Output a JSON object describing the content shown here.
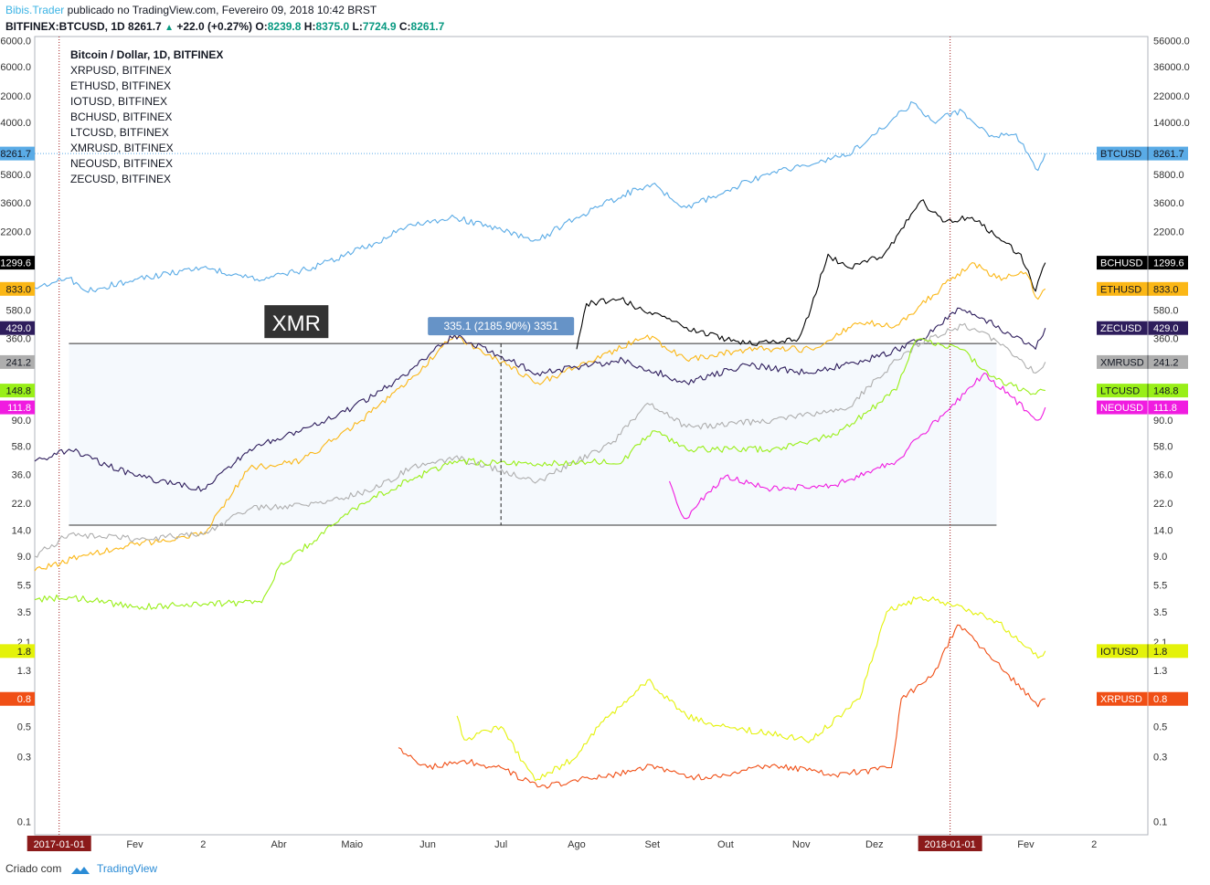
{
  "header": {
    "author": "Bibis.Trader",
    "published": " publicado no TradingView.com, Fevereiro 09, 2018 10:42 BRST",
    "symbol": "BITFINEX:BTCUSD, 1D",
    "last": "8261.7",
    "change": "+22.0 (+0.27%)",
    "o_label": "O:",
    "o": "8239.8",
    "h_label": "H:",
    "h": "8375.0",
    "l_label": "L:",
    "l": "7724.9",
    "c_label": "C:",
    "c": "8261.7"
  },
  "footer": {
    "created": "Criado com",
    "brand": "TradingView"
  },
  "xmr_label": "XMR",
  "measure_label": "335.1 (2185.90%) 3351",
  "colors": {
    "BTCUSD": "#5aabe6",
    "BCHUSD": "#000000",
    "ETHUSD": "#fbb716",
    "ZECUSD": "#2e1d5c",
    "XMRUSD": "#aeaeae",
    "LTCUSD": "#99ef18",
    "NEOUSD": "#f01ce0",
    "IOTUSD": "#e4f20a",
    "XRPUSD": "#f04f16"
  },
  "chart_data": {
    "type": "line",
    "title": "Bitcoin / Dollar, 1D, BITFINEX",
    "legend": [
      "Bitcoin / Dollar, 1D, BITFINEX",
      "XRPUSD, BITFINEX",
      "ETHUSD, BITFINEX",
      "IOTUSD, BITFINEX",
      "BCHUSD, BITFINEX",
      "LTCUSD, BITFINEX",
      "XMRUSD, BITFINEX",
      "NEOUSD, BITFINEX",
      "ZECUSD, BITFINEX"
    ],
    "legend_position": "top-left",
    "y_scale": "log",
    "y_ticks": [
      "56000.0",
      "36000.0",
      "22000.0",
      "14000.0",
      "5800.0",
      "3600.0",
      "2200.0",
      "580.0",
      "360.0",
      "90.0",
      "58.0",
      "36.0",
      "22.0",
      "14.0",
      "9.0",
      "5.5",
      "3.5",
      "2.1",
      "1.3",
      "0.5",
      "0.3",
      "0.1"
    ],
    "x_ticks": [
      "2017-01-01",
      "Fev",
      "2",
      "Abr",
      "Maio",
      "Jun",
      "Jul",
      "Ago",
      "Set",
      "Out",
      "Nov",
      "Dez",
      "2018-01-01",
      "Fev",
      "2"
    ],
    "x_tick_dates": [
      "2017-01-01",
      "2017-02-01",
      "2017-03-01",
      "2017-04-01",
      "2017-05-01",
      "2017-06-01",
      "2017-07-01",
      "2017-08-01",
      "2017-09-01",
      "2017-10-01",
      "2017-11-01",
      "2017-12-01",
      "2018-01-01",
      "2018-02-01",
      "2018-03-01"
    ],
    "x_range": [
      "2016-12-22",
      "2018-03-23"
    ],
    "highlighted_x_ticks": [
      "2017-01-01",
      "2018-01-01"
    ],
    "last_value_labels": [
      {
        "name": "BTCUSD",
        "value": "8261.7"
      },
      {
        "name": "BCHUSD",
        "value": "1299.6"
      },
      {
        "name": "ETHUSD",
        "value": "833.0"
      },
      {
        "name": "ZECUSD",
        "value": "429.0"
      },
      {
        "name": "XMRUSD",
        "value": "241.2"
      },
      {
        "name": "LTCUSD",
        "value": "148.8"
      },
      {
        "name": "NEOUSD",
        "value": "111.8"
      },
      {
        "name": "IOTUSD",
        "value": "1.8"
      },
      {
        "name": "XRPUSD",
        "value": "0.8"
      }
    ],
    "series": [
      {
        "name": "BTCUSD",
        "x": [
          "2016-12-22",
          "2017-01-05",
          "2017-01-12",
          "2017-02-01",
          "2017-03-01",
          "2017-03-25",
          "2017-04-15",
          "2017-05-10",
          "2017-05-25",
          "2017-06-12",
          "2017-07-16",
          "2017-08-01",
          "2017-08-20",
          "2017-09-01",
          "2017-09-15",
          "2017-10-01",
          "2017-10-20",
          "2017-11-10",
          "2017-11-20",
          "2017-12-08",
          "2017-12-17",
          "2017-12-25",
          "2018-01-06",
          "2018-01-17",
          "2018-01-28",
          "2018-02-06",
          "2018-02-09"
        ],
        "values": [
          850,
          1000,
          800,
          980,
          1200,
          970,
          1200,
          1800,
          2500,
          2800,
          1900,
          2800,
          4100,
          4900,
          3300,
          4400,
          6000,
          7300,
          8000,
          14500,
          19500,
          14200,
          17000,
          11000,
          11500,
          6200,
          8261.7
        ]
      },
      {
        "name": "BCHUSD",
        "x": [
          "2017-08-01",
          "2017-08-05",
          "2017-08-19",
          "2017-08-30",
          "2017-09-10",
          "2017-09-20",
          "2017-10-10",
          "2017-10-31",
          "2017-11-05",
          "2017-11-12",
          "2017-11-20",
          "2017-12-05",
          "2017-12-20",
          "2017-12-30",
          "2018-01-10",
          "2018-01-20",
          "2018-01-30",
          "2018-02-05",
          "2018-02-09"
        ],
        "values": [
          300,
          650,
          700,
          550,
          480,
          400,
          330,
          360,
          600,
          1500,
          1200,
          1500,
          3700,
          2600,
          2800,
          2000,
          1500,
          800,
          1299.6
        ]
      },
      {
        "name": "ETHUSD",
        "x": [
          "2016-12-22",
          "2017-01-10",
          "2017-02-01",
          "2017-03-01",
          "2017-03-20",
          "2017-04-10",
          "2017-05-05",
          "2017-05-25",
          "2017-06-12",
          "2017-07-16",
          "2017-08-01",
          "2017-08-30",
          "2017-09-15",
          "2017-10-10",
          "2017-11-05",
          "2017-11-25",
          "2017-12-10",
          "2017-12-25",
          "2018-01-10",
          "2018-01-20",
          "2018-02-01",
          "2018-02-06",
          "2018-02-09"
        ],
        "values": [
          7,
          9,
          11,
          13,
          40,
          45,
          90,
          180,
          380,
          170,
          220,
          380,
          250,
          300,
          300,
          470,
          450,
          750,
          1300,
          1000,
          1100,
          700,
          833
        ]
      },
      {
        "name": "ZECUSD",
        "x": [
          "2016-12-22",
          "2017-01-05",
          "2017-02-01",
          "2017-03-01",
          "2017-03-20",
          "2017-04-10",
          "2017-05-01",
          "2017-05-20",
          "2017-06-12",
          "2017-07-16",
          "2017-08-01",
          "2017-08-20",
          "2017-09-15",
          "2017-10-10",
          "2017-11-05",
          "2017-12-01",
          "2017-12-20",
          "2018-01-05",
          "2018-01-15",
          "2018-02-05",
          "2018-02-09"
        ],
        "values": [
          45,
          55,
          35,
          28,
          55,
          75,
          110,
          180,
          380,
          200,
          220,
          250,
          170,
          230,
          200,
          260,
          350,
          600,
          500,
          300,
          429
        ]
      },
      {
        "name": "XMRUSD",
        "x": [
          "2016-12-22",
          "2017-01-05",
          "2017-02-01",
          "2017-03-01",
          "2017-03-20",
          "2017-04-20",
          "2017-05-10",
          "2017-05-25",
          "2017-06-12",
          "2017-07-16",
          "2017-08-15",
          "2017-08-30",
          "2017-09-15",
          "2017-10-20",
          "2017-11-20",
          "2017-12-10",
          "2017-12-20",
          "2018-01-06",
          "2018-01-15",
          "2018-02-05",
          "2018-02-09"
        ],
        "values": [
          9,
          13,
          12,
          13,
          20,
          22,
          28,
          40,
          48,
          32,
          60,
          120,
          80,
          90,
          110,
          250,
          330,
          450,
          400,
          200,
          241.2
        ]
      },
      {
        "name": "LTCUSD",
        "x": [
          "2016-12-22",
          "2017-01-05",
          "2017-02-01",
          "2017-03-01",
          "2017-03-25",
          "2017-04-01",
          "2017-05-05",
          "2017-05-20",
          "2017-06-12",
          "2017-07-16",
          "2017-08-20",
          "2017-09-01",
          "2017-09-15",
          "2017-10-20",
          "2017-11-15",
          "2017-12-10",
          "2017-12-18",
          "2018-01-05",
          "2018-01-20",
          "2018-02-05",
          "2018-02-09"
        ],
        "values": [
          4.3,
          4.5,
          3.8,
          4.0,
          4.1,
          7.5,
          22,
          30,
          45,
          43,
          45,
          75,
          55,
          55,
          70,
          150,
          350,
          300,
          180,
          140,
          148.8
        ]
      },
      {
        "name": "NEOUSD",
        "x": [
          "2017-09-08",
          "2017-09-12",
          "2017-09-15",
          "2017-09-20",
          "2017-10-01",
          "2017-10-20",
          "2017-11-15",
          "2017-12-10",
          "2017-12-20",
          "2018-01-01",
          "2018-01-15",
          "2018-02-06",
          "2018-02-09"
        ],
        "values": [
          32,
          20,
          17,
          22,
          35,
          28,
          30,
          45,
          70,
          110,
          200,
          90,
          111.8
        ]
      },
      {
        "name": "IOTUSD",
        "x": [
          "2017-06-13",
          "2017-06-16",
          "2017-07-01",
          "2017-07-15",
          "2017-08-01",
          "2017-08-10",
          "2017-08-30",
          "2017-09-15",
          "2017-10-01",
          "2017-11-05",
          "2017-11-25",
          "2017-12-06",
          "2017-12-20",
          "2018-01-01",
          "2018-01-20",
          "2018-02-06",
          "2018-02-09"
        ],
        "values": [
          0.6,
          0.4,
          0.5,
          0.2,
          0.3,
          0.5,
          1.1,
          0.6,
          0.5,
          0.4,
          0.8,
          3.5,
          4.5,
          4.0,
          3.0,
          1.6,
          1.8
        ]
      },
      {
        "name": "XRPUSD",
        "x": [
          "2017-05-20",
          "2017-06-01",
          "2017-06-15",
          "2017-07-01",
          "2017-07-16",
          "2017-08-15",
          "2017-09-01",
          "2017-09-15",
          "2017-10-01",
          "2017-10-20",
          "2017-11-15",
          "2017-12-08",
          "2017-12-12",
          "2017-12-25",
          "2018-01-04",
          "2018-01-20",
          "2018-02-06",
          "2018-02-09"
        ],
        "values": [
          0.35,
          0.25,
          0.28,
          0.25,
          0.18,
          0.22,
          0.26,
          0.21,
          0.22,
          0.26,
          0.22,
          0.25,
          0.8,
          1.2,
          2.8,
          1.5,
          0.7,
          0.8
        ]
      }
    ],
    "annotations": {
      "rectangle_range": {
        "x": [
          "2017-01-05",
          "2018-01-20"
        ],
        "y": [
          15.2,
          330
        ]
      },
      "measure_x": "2017-07-01",
      "xmr_label_x": "2017-05-25"
    }
  }
}
